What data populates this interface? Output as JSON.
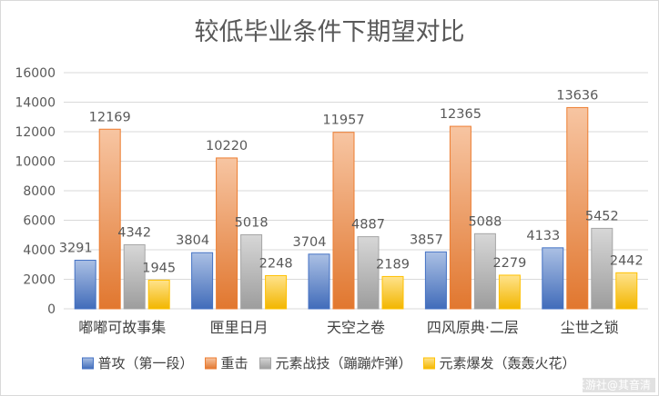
{
  "chart_data": {
    "type": "bar",
    "title": "较低毕业条件下期望对比",
    "categories": [
      "嘟嘟可故事集",
      "匣里日月",
      "天空之卷",
      "四风原典·二层",
      "尘世之锁"
    ],
    "series": [
      {
        "name": "普攻（第一段）",
        "values": [
          3291,
          3804,
          3704,
          3857,
          4133
        ],
        "color": "#4472c4"
      },
      {
        "name": "重击",
        "values": [
          12169,
          10220,
          11957,
          12365,
          13636
        ],
        "color": "#ed7d31"
      },
      {
        "name": "元素战技（蹦蹦炸弹）",
        "values": [
          4342,
          5018,
          4887,
          5088,
          5452
        ],
        "color": "#a5a5a5"
      },
      {
        "name": "元素爆发（轰轰火花）",
        "values": [
          1945,
          2248,
          2189,
          2279,
          2442
        ],
        "color": "#ffc000"
      }
    ],
    "ylim": [
      0,
      16000
    ],
    "yticks": [
      "0",
      "2000",
      "4000",
      "6000",
      "8000",
      "10000",
      "12000",
      "14000",
      "16000"
    ],
    "grid": true,
    "legend": "bottom"
  },
  "watermark": "米游社@其音清"
}
